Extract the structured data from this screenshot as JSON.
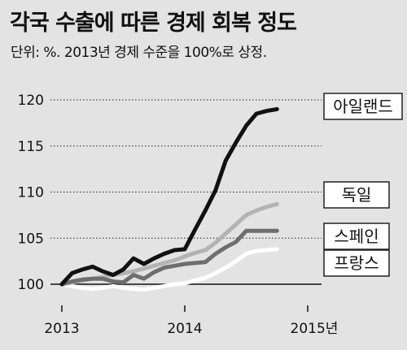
{
  "title": "각국 수출에 따른 경제 회복 정도",
  "subtitle": "단위: %. 2013년 경제 수준을 100%로 상정.",
  "chart_data": {
    "type": "line",
    "x_ticks": [
      "2013",
      "2014",
      "2015년"
    ],
    "y_ticks": [
      "100",
      "105",
      "110",
      "115",
      "120"
    ],
    "ylim": [
      100,
      120
    ],
    "xlim": [
      0,
      8
    ],
    "grid": true,
    "x": [
      0,
      0.33,
      0.67,
      1,
      1.33,
      1.67,
      2,
      2.33,
      2.67,
      3,
      3.33,
      3.67,
      4,
      4.33,
      4.67,
      5,
      5.33,
      5.67,
      6,
      6.33,
      6.67,
      7,
      7.33,
      7.67,
      8
    ],
    "series": [
      {
        "name": "아일랜드",
        "color": "#111111",
        "values": [
          100.0,
          101.2,
          101.6,
          101.9,
          101.4,
          101.0,
          101.6,
          102.8,
          102.2,
          102.8,
          103.3,
          103.7,
          103.8,
          105.9,
          108.0,
          110.2,
          113.4,
          115.4,
          117.2,
          118.5,
          118.8,
          119.0,
          null,
          null,
          null
        ]
      },
      {
        "name": "독일",
        "color": "#b3b3b3",
        "values": [
          100.0,
          100.2,
          100.4,
          100.6,
          100.8,
          101.0,
          101.2,
          101.4,
          101.7,
          102.0,
          102.3,
          102.6,
          103.0,
          103.4,
          103.7,
          104.5,
          105.5,
          106.5,
          107.5,
          108.0,
          108.4,
          108.7,
          null,
          null,
          null
        ]
      },
      {
        "name": "스페인",
        "color": "#6e6e6e",
        "values": [
          100.0,
          100.3,
          100.5,
          100.6,
          100.6,
          100.3,
          100.2,
          101.0,
          100.6,
          101.3,
          101.8,
          102.0,
          102.2,
          102.3,
          102.4,
          103.3,
          104.0,
          104.6,
          105.8,
          105.8,
          105.8,
          105.8,
          null,
          null,
          null
        ]
      },
      {
        "name": "프랑스",
        "color": "#ffffff",
        "values": [
          100.0,
          99.8,
          99.6,
          99.5,
          99.6,
          99.8,
          99.6,
          99.5,
          99.4,
          99.6,
          99.8,
          100.0,
          100.1,
          100.4,
          100.7,
          101.2,
          101.8,
          102.5,
          103.3,
          103.6,
          103.7,
          103.8,
          null,
          null,
          null
        ]
      }
    ],
    "legend_placement": "right-end-of-lines"
  }
}
